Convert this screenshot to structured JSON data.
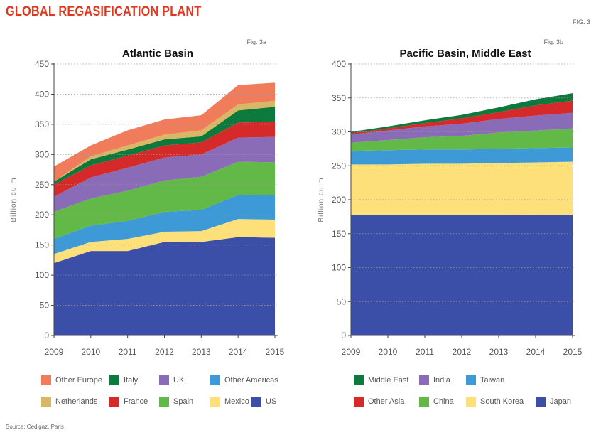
{
  "page": {
    "title": "GLOBAL REGASIFICATION PLANT",
    "fig_label": "FIG. 3",
    "source": "Source: Cedigaz, Paris"
  },
  "chart_data": [
    {
      "type": "area",
      "stacked": true,
      "title": "Atlantic Basin",
      "fig_label": "Fig. 3a",
      "ylabel": "Billion cu m",
      "xlabel": "",
      "x": [
        "2009",
        "2010",
        "2011",
        "2012",
        "2013",
        "2014",
        "2015"
      ],
      "ylim": [
        0,
        450
      ],
      "yticks": [
        0,
        50,
        100,
        150,
        200,
        250,
        300,
        350,
        400,
        450
      ],
      "grid": "horizontal dotted",
      "legend_position": "bottom",
      "series": [
        {
          "name": "US",
          "color": "#3c4fa8",
          "values": [
            120,
            140,
            140,
            155,
            155,
            163,
            162
          ]
        },
        {
          "name": "Mexico",
          "color": "#fde07a",
          "values": [
            15,
            15,
            20,
            17,
            18,
            30,
            30
          ]
        },
        {
          "name": "Other Americas",
          "color": "#3d9ad6",
          "values": [
            25,
            27,
            30,
            33,
            35,
            40,
            40
          ]
        },
        {
          "name": "Spain",
          "color": "#62b948",
          "values": [
            45,
            45,
            50,
            52,
            55,
            55,
            55
          ]
        },
        {
          "name": "UK",
          "color": "#8a6bb8",
          "values": [
            25,
            35,
            38,
            38,
            37,
            40,
            42
          ]
        },
        {
          "name": "France",
          "color": "#d62a2a",
          "values": [
            20,
            20,
            20,
            20,
            20,
            25,
            25
          ]
        },
        {
          "name": "Italy",
          "color": "#0c7a3d",
          "values": [
            5,
            10,
            10,
            10,
            10,
            20,
            25
          ]
        },
        {
          "name": "Netherlands",
          "color": "#d9b865",
          "values": [
            0,
            5,
            7,
            8,
            10,
            10,
            10
          ]
        },
        {
          "name": "Other Europe",
          "color": "#f07c5c",
          "values": [
            25,
            18,
            25,
            25,
            25,
            32,
            30
          ]
        }
      ],
      "legend_rows": [
        [
          "Other Europe",
          "Italy",
          "UK",
          "Other Americas"
        ],
        [
          "Netherlands",
          "France",
          "Spain",
          "Mexico",
          "US"
        ]
      ]
    },
    {
      "type": "area",
      "stacked": true,
      "title": "Pacific Basin, Middle East",
      "fig_label": "Fig. 3b",
      "ylabel": "Billion cu m",
      "xlabel": "",
      "x": [
        "2009",
        "2010",
        "2011",
        "2012",
        "2013",
        "2014",
        "2015"
      ],
      "ylim": [
        0,
        400
      ],
      "yticks": [
        0,
        50,
        100,
        150,
        200,
        250,
        300,
        350,
        400
      ],
      "grid": "horizontal dotted",
      "legend_position": "bottom",
      "series": [
        {
          "name": "Japan",
          "color": "#3c4fa8",
          "values": [
            177,
            177,
            177,
            177,
            177,
            178,
            178
          ]
        },
        {
          "name": "South Korea",
          "color": "#fde07a",
          "values": [
            75,
            75,
            76,
            76,
            77,
            77,
            78
          ]
        },
        {
          "name": "Taiwan",
          "color": "#3d9ad6",
          "values": [
            20,
            21,
            21,
            21,
            21,
            21,
            21
          ]
        },
        {
          "name": "China",
          "color": "#62b948",
          "values": [
            12,
            15,
            18,
            20,
            24,
            26,
            28
          ]
        },
        {
          "name": "India",
          "color": "#8a6bb8",
          "values": [
            12,
            14,
            16,
            18,
            20,
            22,
            23
          ]
        },
        {
          "name": "Other Asia",
          "color": "#d62a2a",
          "values": [
            2,
            3,
            5,
            8,
            10,
            15,
            18
          ]
        },
        {
          "name": "Middle East",
          "color": "#0c7a3d",
          "values": [
            2,
            3,
            4,
            5,
            7,
            9,
            11
          ]
        }
      ],
      "legend_rows": [
        [
          "Middle East",
          "India",
          "Taiwan"
        ],
        [
          "Other Asia",
          "China",
          "South Korea",
          "Japan"
        ]
      ]
    }
  ]
}
